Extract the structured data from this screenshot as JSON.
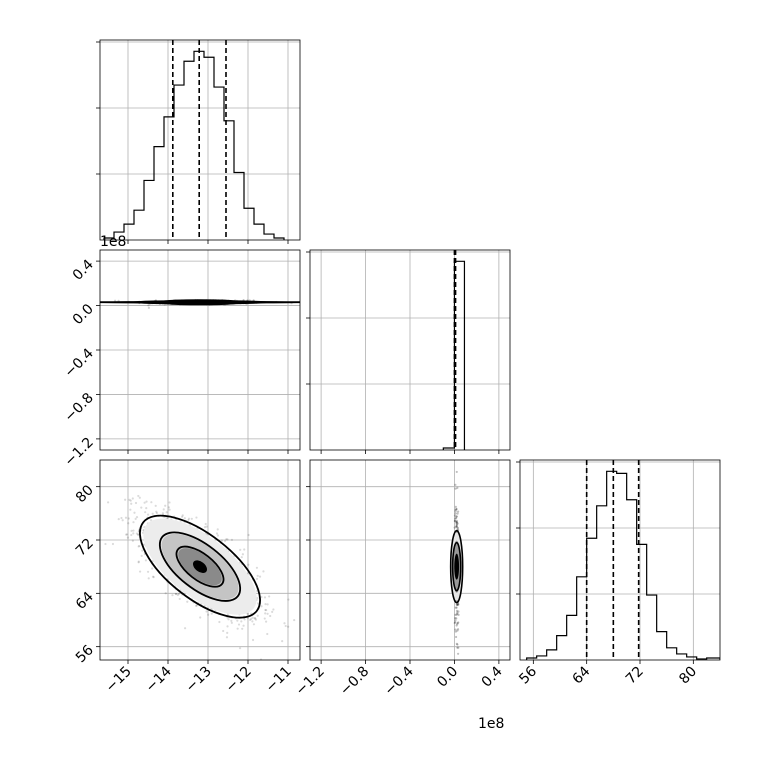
{
  "chart_data": {
    "type": "corner",
    "parameters": 3,
    "grid": true,
    "offset_labels": {
      "param2_y": "1e8",
      "param2_x": "1e8"
    },
    "axes": {
      "p1": {
        "range": [
          -15.7,
          -10.7
        ],
        "ticks": [
          -15,
          -14,
          -13,
          -12,
          -11
        ],
        "tick_labels": [
          "−15",
          "−14",
          "−13",
          "−12",
          "−11"
        ]
      },
      "p2": {
        "range": [
          -1.3,
          0.5
        ],
        "ticks": [
          -1.2,
          -0.8,
          -0.4,
          0.0,
          0.4
        ],
        "tick_labels": [
          "−1.2",
          "−0.8",
          "−0.4",
          "0.0",
          "0.4"
        ]
      },
      "p3": {
        "range": [
          54,
          84
        ],
        "ticks": [
          56,
          64,
          72,
          80
        ],
        "tick_labels": [
          "56",
          "64",
          "72",
          "80"
        ]
      }
    },
    "histograms": [
      {
        "param": "p1",
        "quantiles": [
          -13.88,
          -13.22,
          -12.55
        ],
        "edges": [
          -15.6,
          -15.35,
          -15.1,
          -14.85,
          -14.6,
          -14.35,
          -14.1,
          -13.85,
          -13.6,
          -13.35,
          -13.1,
          -12.85,
          -12.6,
          -12.35,
          -12.1,
          -11.85,
          -11.6,
          -11.35,
          -11.1
        ],
        "counts": [
          0.01,
          0.04,
          0.08,
          0.15,
          0.3,
          0.47,
          0.62,
          0.78,
          0.9,
          0.95,
          0.92,
          0.77,
          0.6,
          0.34,
          0.16,
          0.08,
          0.03,
          0.01
        ]
      },
      {
        "param": "p2",
        "quantiles": [
          0.0,
          0.005,
          0.01
        ],
        "edges": [
          -0.1,
          0.0,
          0.09
        ],
        "counts": [
          0.01,
          0.95
        ]
      },
      {
        "param": "p3",
        "quantiles": [
          64.0,
          68.0,
          71.8
        ],
        "edges": [
          55.0,
          56.5,
          58.0,
          59.5,
          61.0,
          62.5,
          64.0,
          65.5,
          67.0,
          68.5,
          70.0,
          71.5,
          73.0,
          74.5,
          76.0,
          77.5,
          79.0,
          80.5,
          82.0,
          84.0
        ],
        "counts": [
          0.01,
          0.02,
          0.05,
          0.12,
          0.22,
          0.41,
          0.6,
          0.76,
          0.93,
          0.92,
          0.79,
          0.57,
          0.32,
          0.14,
          0.06,
          0.03,
          0.015,
          0.005,
          0.01
        ]
      }
    ],
    "joint": [
      {
        "x": "p1",
        "y": "p2",
        "center": [
          -13.2,
          0.03
        ],
        "spread": [
          0.75,
          0.01
        ]
      },
      {
        "x": "p1",
        "y": "p3",
        "center": [
          -13.2,
          68.0
        ],
        "spread": [
          0.7,
          3.8
        ],
        "correlation": -0.72
      },
      {
        "x": "p2",
        "y": "p3",
        "center": [
          0.02,
          68.0
        ],
        "spread": [
          0.02,
          3.8
        ]
      }
    ]
  }
}
